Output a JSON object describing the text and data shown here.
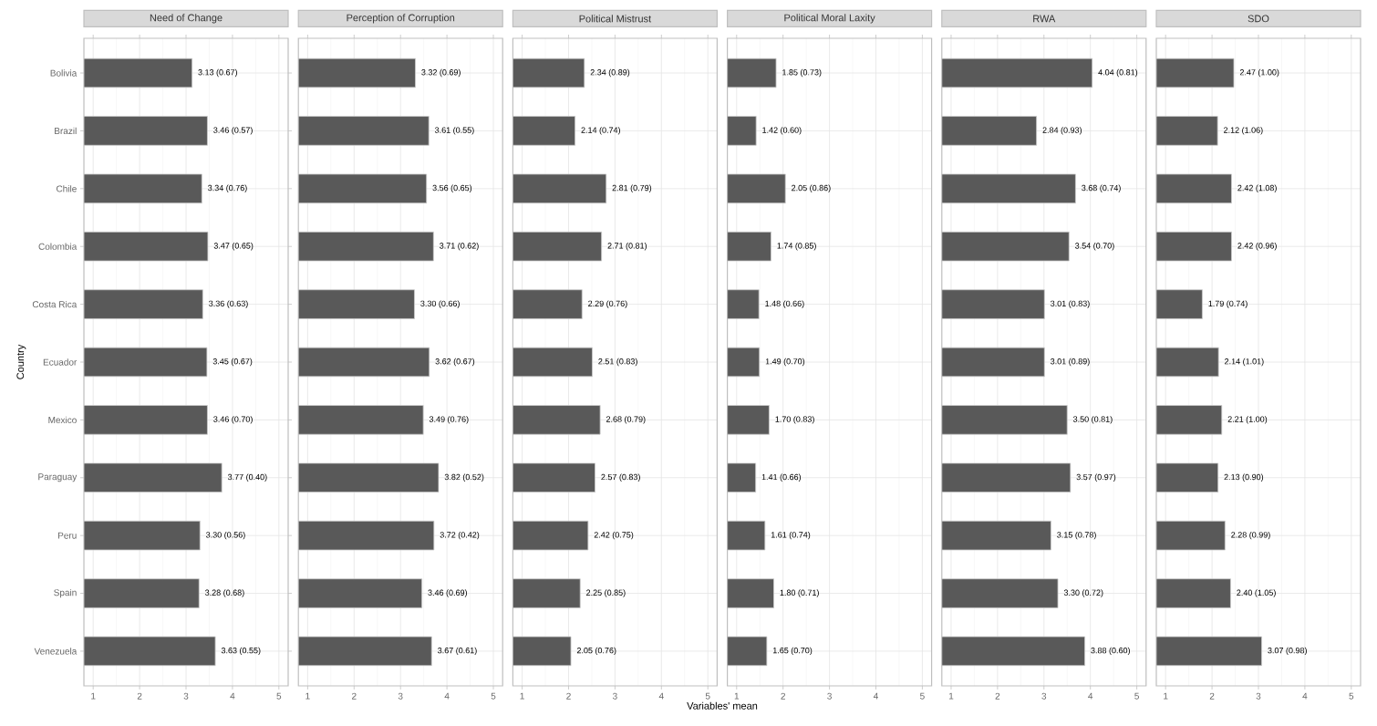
{
  "chart_data": [
    {
      "type": "bar",
      "orientation": "horizontal",
      "title": "Need of Change",
      "ylabel": "Country",
      "categories": [
        "Bolivia",
        "Brazil",
        "Chile",
        "Colombia",
        "Costa Rica",
        "Ecuador",
        "Mexico",
        "Paraguay",
        "Peru",
        "Spain",
        "Venezuela"
      ],
      "values": [
        3.13,
        3.46,
        3.34,
        3.47,
        3.36,
        3.45,
        3.46,
        3.77,
        3.3,
        3.28,
        3.63
      ],
      "value_labels": [
        "3.13 (0.67)",
        "3.46 (0.57)",
        "3.34 (0.76)",
        "3.47 (0.65)",
        "3.36 (0.63)",
        "3.45 (0.67)",
        "3.46 (0.70)",
        "3.77 (0.40)",
        "3.30 (0.56)",
        "3.28 (0.68)",
        "3.63 (0.55)"
      ],
      "color": "#595959",
      "xlim": [
        0.8,
        5.2
      ],
      "xticks": [
        1,
        2,
        3,
        4,
        5
      ],
      "grid": true
    },
    {
      "type": "bar",
      "orientation": "horizontal",
      "title": "Perception of Corruption",
      "categories": [
        null,
        null,
        null,
        null,
        null,
        null,
        null,
        null,
        null,
        null,
        null
      ],
      "values": [
        3.32,
        3.61,
        3.56,
        3.71,
        3.3,
        3.62,
        3.49,
        3.82,
        3.72,
        3.46,
        3.67
      ],
      "value_labels": [
        "3.32 (0.69)",
        "3.61 (0.55)",
        "3.56 (0.65)",
        "3.71 (0.62)",
        "3.30 (0.66)",
        "3.62 (0.67)",
        "3.49 (0.76)",
        "3.82 (0.52)",
        "3.72 (0.42)",
        "3.46 (0.69)",
        "3.67 (0.61)"
      ],
      "color": "#595959",
      "xlim": [
        0.8,
        5.2
      ],
      "xticks": [
        1,
        2,
        3,
        4,
        5
      ],
      "grid": true,
      "tick_labels": "x"
    },
    {
      "type": "bar",
      "orientation": "horizontal",
      "title": "Political Mistrust",
      "xlabel": "Variables' mean",
      "categories": [
        null,
        null,
        null,
        null,
        null,
        null,
        null,
        null,
        null,
        null,
        null
      ],
      "values": [
        2.34,
        2.14,
        2.81,
        2.71,
        2.29,
        2.51,
        2.68,
        2.57,
        2.42,
        2.25,
        2.05
      ],
      "value_labels": [
        "2.34 (0.89)",
        "2.14 (0.74)",
        "2.81 (0.79)",
        "2.71 (0.81)",
        "2.29 (0.76)",
        "2.51 (0.83)",
        "2.68 (0.79)",
        "2.57 (0.83)",
        "2.42 (0.75)",
        "2.25 (0.85)",
        "2.05 (0.76)"
      ],
      "color": "#595959",
      "xlim": [
        0.8,
        5.2
      ],
      "xticks": [
        1,
        2,
        3,
        4,
        5
      ],
      "grid": true,
      "tick_labels": "x"
    },
    {
      "type": "bar",
      "orientation": "horizontal",
      "title": "Political Moral Laxity",
      "categories": [
        null,
        null,
        null,
        null,
        null,
        null,
        null,
        null,
        null,
        null,
        null
      ],
      "values": [
        1.85,
        1.42,
        2.05,
        1.74,
        1.48,
        1.49,
        1.7,
        1.41,
        1.61,
        1.8,
        1.65
      ],
      "value_labels": [
        "1.85 (0.73)",
        "1.42 (0.60)",
        "2.05 (0.86)",
        "1.74 (0.85)",
        "1.48 (0.66)",
        "1.49 (0.70)",
        "1.70 (0.83)",
        "1.41 (0.66)",
        "1.61 (0.74)",
        "1.80 (0.71)",
        "1.65 (0.70)"
      ],
      "color": "#595959",
      "xlim": [
        0.8,
        5.2
      ],
      "xticks": [
        1,
        2,
        3,
        4,
        5
      ],
      "grid": true,
      "tick_labels": "x"
    },
    {
      "type": "bar",
      "orientation": "horizontal",
      "title": "RWA",
      "categories": [
        null,
        null,
        null,
        null,
        null,
        null,
        null,
        null,
        null,
        null,
        null
      ],
      "values": [
        4.04,
        2.84,
        3.68,
        3.54,
        3.01,
        3.01,
        3.5,
        3.57,
        3.15,
        3.3,
        3.88
      ],
      "value_labels": [
        "4.04 (0.81)",
        "2.84 (0.93)",
        "3.68 (0.74)",
        "3.54 (0.70)",
        "3.01 (0.83)",
        "3.01 (0.89)",
        "3.50 (0.81)",
        "3.57 (0.97)",
        "3.15 (0.78)",
        "3.30 (0.72)",
        "3.88 (0.60)"
      ],
      "color": "#595959",
      "xlim": [
        0.8,
        5.2
      ],
      "xticks": [
        1,
        2,
        3,
        4,
        5
      ],
      "grid": true,
      "tick_labels": "x"
    },
    {
      "type": "bar",
      "orientation": "horizontal",
      "title": "SDO",
      "categories": [
        null,
        null,
        null,
        null,
        null,
        null,
        null,
        null,
        null,
        null,
        null
      ],
      "values": [
        2.47,
        2.12,
        2.42,
        2.42,
        1.79,
        2.14,
        2.21,
        2.13,
        2.28,
        2.4,
        3.07
      ],
      "value_labels": [
        "2.47 (1.00)",
        "2.12 (1.06)",
        "2.42 (1.08)",
        "2.42 (0.96)",
        "1.79 (0.74)",
        "2.14 (1.01)",
        "2.21 (1.00)",
        "2.13 (0.90)",
        "2.28 (0.99)",
        "2.40 (1.05)",
        "3.07 (0.98)"
      ],
      "color": "#595959",
      "xlim": [
        0.8,
        5.2
      ],
      "xticks": [
        1,
        2,
        3,
        4,
        5
      ],
      "grid": true,
      "tick_labels": "x"
    }
  ]
}
